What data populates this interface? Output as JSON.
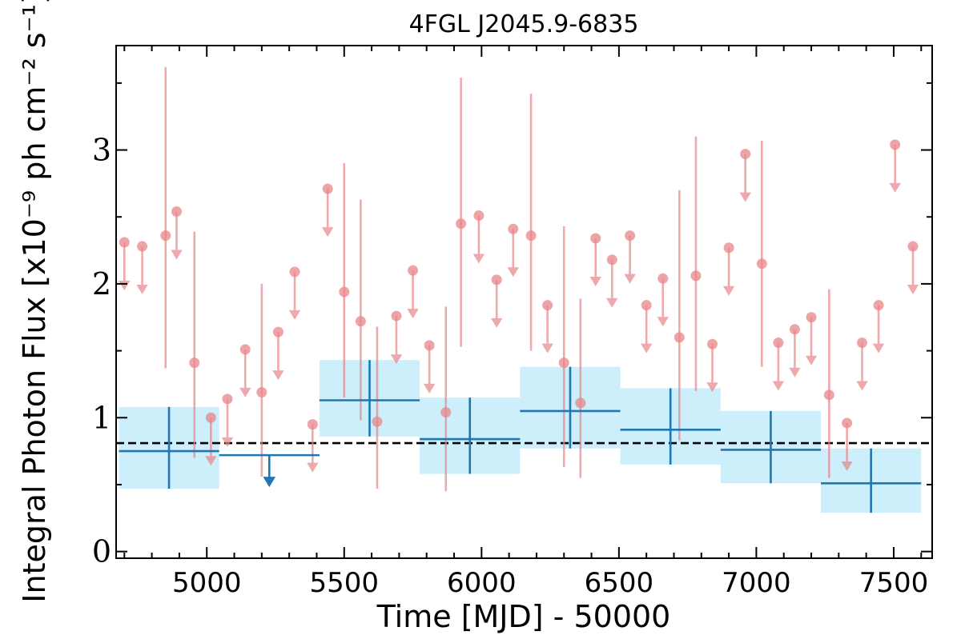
{
  "chart_data": {
    "type": "scatter",
    "title": "4FGL J2045.9-6835",
    "xlabel": "Time [MJD] - 50000",
    "ylabel": "Integral Photon Flux [x10⁻⁹ ph cm⁻² s⁻¹]",
    "xlim": [
      4670,
      7640
    ],
    "ylim": [
      -0.05,
      3.78
    ],
    "x_ticks": [
      5000,
      5500,
      6000,
      6500,
      7000,
      7500
    ],
    "y_ticks": [
      0,
      1,
      2,
      3
    ],
    "average_flux": 0.81,
    "colors": {
      "fine_bins": "#e8868a",
      "coarse_bins": "#1f77b4",
      "coarse_band": "#cdeefb",
      "average_line": "#000000"
    },
    "series": [
      {
        "points": [
          {
            "x": 4850,
            "y": 2.36,
            "ylo": 1.37,
            "yhi": 3.62
          },
          {
            "x": 4955,
            "y": 1.41,
            "ylo": 0.7,
            "yhi": 2.39
          },
          {
            "x": 5200,
            "y": 1.19,
            "ylo": 0.56,
            "yhi": 2.0
          },
          {
            "x": 5500,
            "y": 1.94,
            "ylo": 1.15,
            "yhi": 2.9
          },
          {
            "x": 5560,
            "y": 1.72,
            "ylo": 0.98,
            "yhi": 2.63
          },
          {
            "x": 5620,
            "y": 0.97,
            "ylo": 0.47,
            "yhi": 1.68
          },
          {
            "x": 5870,
            "y": 1.04,
            "ylo": 0.45,
            "yhi": 1.83
          },
          {
            "x": 5925,
            "y": 2.45,
            "ylo": 1.53,
            "yhi": 3.54
          },
          {
            "x": 6180,
            "y": 2.36,
            "ylo": 1.5,
            "yhi": 3.42
          },
          {
            "x": 6300,
            "y": 1.41,
            "ylo": 0.63,
            "yhi": 2.43
          },
          {
            "x": 6360,
            "y": 1.11,
            "ylo": 0.55,
            "yhi": 1.89
          },
          {
            "x": 6720,
            "y": 1.6,
            "ylo": 0.83,
            "yhi": 2.7
          },
          {
            "x": 6780,
            "y": 2.06,
            "ylo": 1.2,
            "yhi": 3.1
          },
          {
            "x": 7020,
            "y": 2.15,
            "ylo": 1.38,
            "yhi": 3.07
          },
          {
            "x": 7265,
            "y": 1.17,
            "ylo": 0.55,
            "yhi": 1.96
          }
        ],
        "upper_limits": [
          {
            "x": 4700,
            "y": 2.31
          },
          {
            "x": 4765,
            "y": 2.28
          },
          {
            "x": 4890,
            "y": 2.54
          },
          {
            "x": 5015,
            "y": 1.0
          },
          {
            "x": 5075,
            "y": 1.14
          },
          {
            "x": 5140,
            "y": 1.51
          },
          {
            "x": 5260,
            "y": 1.64
          },
          {
            "x": 5320,
            "y": 2.09
          },
          {
            "x": 5385,
            "y": 0.95
          },
          {
            "x": 5440,
            "y": 2.71
          },
          {
            "x": 5690,
            "y": 1.76
          },
          {
            "x": 5750,
            "y": 2.1
          },
          {
            "x": 5810,
            "y": 1.54
          },
          {
            "x": 5990,
            "y": 2.51
          },
          {
            "x": 6055,
            "y": 2.03
          },
          {
            "x": 6115,
            "y": 2.41
          },
          {
            "x": 6240,
            "y": 1.84
          },
          {
            "x": 6415,
            "y": 2.34
          },
          {
            "x": 6475,
            "y": 2.18
          },
          {
            "x": 6540,
            "y": 2.36
          },
          {
            "x": 6600,
            "y": 1.84
          },
          {
            "x": 6660,
            "y": 2.04
          },
          {
            "x": 6840,
            "y": 1.55
          },
          {
            "x": 6900,
            "y": 2.27
          },
          {
            "x": 6960,
            "y": 2.97
          },
          {
            "x": 7080,
            "y": 1.56
          },
          {
            "x": 7140,
            "y": 1.66
          },
          {
            "x": 7200,
            "y": 1.75
          },
          {
            "x": 7330,
            "y": 0.96
          },
          {
            "x": 7385,
            "y": 1.56
          },
          {
            "x": 7445,
            "y": 1.84
          },
          {
            "x": 7505,
            "y": 3.04
          },
          {
            "x": 7570,
            "y": 2.28
          }
        ]
      },
      {
        "points": [
          {
            "x0": 4680,
            "x1": 5045,
            "y": 0.75,
            "ylo": 0.47,
            "yhi": 1.08
          },
          {
            "x0": 5410,
            "x1": 5775,
            "y": 1.13,
            "ylo": 0.86,
            "yhi": 1.43
          },
          {
            "x0": 5775,
            "x1": 6140,
            "y": 0.84,
            "ylo": 0.58,
            "yhi": 1.15
          },
          {
            "x0": 6140,
            "x1": 6505,
            "y": 1.05,
            "ylo": 0.77,
            "yhi": 1.38
          },
          {
            "x0": 6505,
            "x1": 6870,
            "y": 0.91,
            "ylo": 0.65,
            "yhi": 1.22
          },
          {
            "x0": 6870,
            "x1": 7235,
            "y": 0.76,
            "ylo": 0.51,
            "yhi": 1.05
          },
          {
            "x0": 7235,
            "x1": 7600,
            "y": 0.51,
            "ylo": 0.29,
            "yhi": 0.77
          }
        ],
        "upper_limits": [
          {
            "x0": 5045,
            "x1": 5410,
            "y": 0.72
          }
        ]
      }
    ]
  }
}
